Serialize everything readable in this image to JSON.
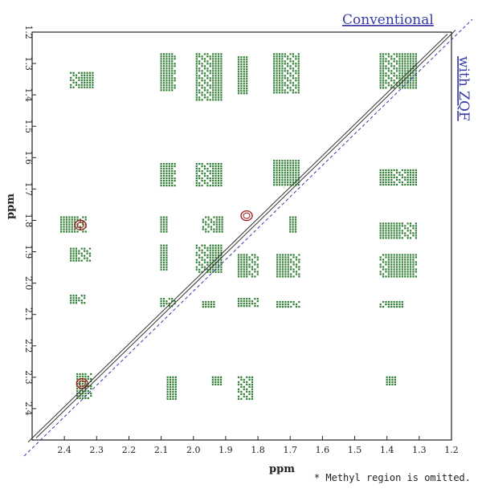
{
  "chart_data": {
    "type": "scatter",
    "title": "",
    "xlabel": "ppm",
    "ylabel": "ppm",
    "xlim": [
      2.5,
      1.2
    ],
    "ylim": [
      1.2,
      2.5
    ],
    "x_ticks": [
      "2.4",
      "2.3",
      "2.2",
      "2.1",
      "2.0",
      "1.9",
      "1.8",
      "1.7",
      "1.6",
      "1.5",
      "1.4",
      "1.3",
      "1.2"
    ],
    "y_ticks": [
      "1.2",
      "1.3",
      "1.4",
      "1.5",
      "1.6",
      "1.7",
      "1.8",
      "1.9",
      "2.0",
      "2.1",
      "2.2",
      "2.3",
      "2.4"
    ],
    "annotations": {
      "upper": "Conventional",
      "lower": "with ZQF",
      "footnote": "* Methyl region is omitted."
    },
    "colors": {
      "cross_peak": "#2e7d32",
      "diagonal_peak": "#a01818",
      "diagonal": "#333333",
      "guide": "#3a3aa8"
    },
    "cross_peak_blocks": [
      {
        "x": [
          2.31,
          2.38
        ],
        "y": [
          1.33,
          1.38
        ]
      },
      {
        "x": [
          2.05,
          2.1
        ],
        "y": [
          1.27,
          1.39
        ]
      },
      {
        "x": [
          1.91,
          1.99
        ],
        "y": [
          1.27,
          1.42
        ]
      },
      {
        "x": [
          1.83,
          1.86
        ],
        "y": [
          1.28,
          1.4
        ]
      },
      {
        "x": [
          1.67,
          1.75
        ],
        "y": [
          1.27,
          1.4
        ]
      },
      {
        "x": [
          1.31,
          1.42
        ],
        "y": [
          1.27,
          1.38
        ]
      },
      {
        "x": [
          2.05,
          2.1
        ],
        "y": [
          1.62,
          1.69
        ]
      },
      {
        "x": [
          1.91,
          1.99
        ],
        "y": [
          1.62,
          1.69
        ]
      },
      {
        "x": [
          1.67,
          1.75
        ],
        "y": [
          1.61,
          1.69
        ]
      },
      {
        "x": [
          1.31,
          1.42
        ],
        "y": [
          1.64,
          1.69
        ]
      },
      {
        "x": [
          2.33,
          2.41
        ],
        "y": [
          1.79,
          1.84
        ]
      },
      {
        "x": [
          2.08,
          2.1
        ],
        "y": [
          1.79,
          1.84
        ]
      },
      {
        "x": [
          1.91,
          1.97
        ],
        "y": [
          1.79,
          1.84
        ]
      },
      {
        "x": [
          1.68,
          1.7
        ],
        "y": [
          1.79,
          1.84
        ]
      },
      {
        "x": [
          1.31,
          1.42
        ],
        "y": [
          1.81,
          1.86
        ]
      },
      {
        "x": [
          2.32,
          2.38
        ],
        "y": [
          1.89,
          1.93
        ]
      },
      {
        "x": [
          2.08,
          2.1
        ],
        "y": [
          1.88,
          1.96
        ]
      },
      {
        "x": [
          1.91,
          1.99
        ],
        "y": [
          1.88,
          1.97
        ]
      },
      {
        "x": [
          1.8,
          1.86
        ],
        "y": [
          1.91,
          1.98
        ]
      },
      {
        "x": [
          1.67,
          1.74
        ],
        "y": [
          1.91,
          1.98
        ]
      },
      {
        "x": [
          1.31,
          1.42
        ],
        "y": [
          1.91,
          1.98
        ]
      },
      {
        "x": [
          2.33,
          2.38
        ],
        "y": [
          2.04,
          2.07
        ]
      },
      {
        "x": [
          2.05,
          2.1
        ],
        "y": [
          2.05,
          2.08
        ]
      },
      {
        "x": [
          1.93,
          1.97
        ],
        "y": [
          2.06,
          2.08
        ]
      },
      {
        "x": [
          1.8,
          1.86
        ],
        "y": [
          2.05,
          2.08
        ]
      },
      {
        "x": [
          1.67,
          1.74
        ],
        "y": [
          2.06,
          2.08
        ]
      },
      {
        "x": [
          1.35,
          1.42
        ],
        "y": [
          2.06,
          2.08
        ]
      },
      {
        "x": [
          2.05,
          2.08
        ],
        "y": [
          2.3,
          2.37
        ]
      },
      {
        "x": [
          1.91,
          1.94
        ],
        "y": [
          2.3,
          2.33
        ]
      },
      {
        "x": [
          1.81,
          1.86
        ],
        "y": [
          2.3,
          2.37
        ]
      },
      {
        "x": [
          2.31,
          2.36
        ],
        "y": [
          2.29,
          2.37
        ]
      },
      {
        "x": [
          1.37,
          1.4
        ],
        "y": [
          2.3,
          2.33
        ]
      }
    ]
  }
}
